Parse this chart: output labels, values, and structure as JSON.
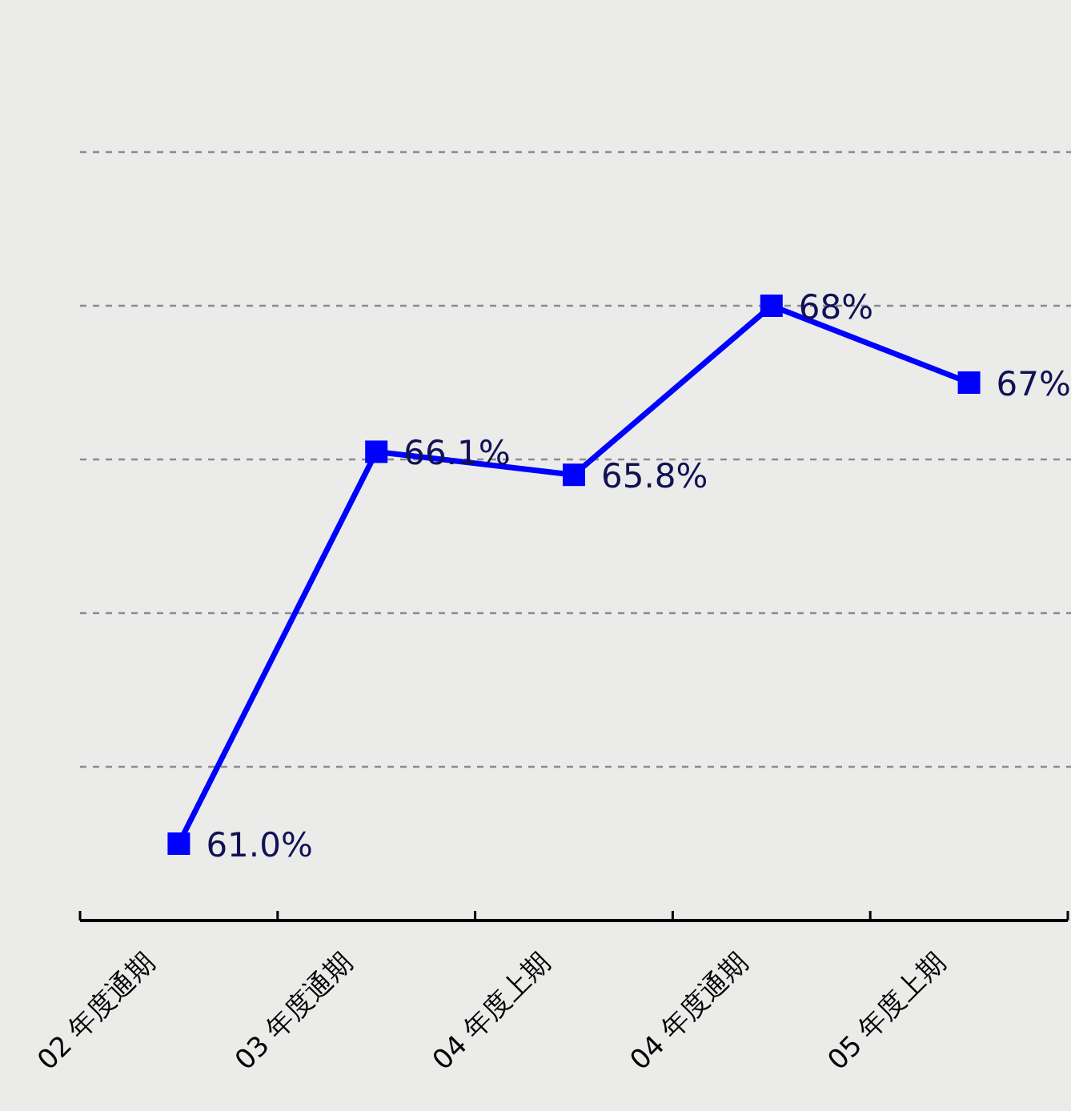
{
  "chart_data": {
    "type": "line",
    "categories": [
      "02 年度通期",
      "03 年度通期",
      "04 年度上期",
      "04 年度通期",
      "05 年度上期"
    ],
    "values": [
      61.0,
      66.1,
      65.8,
      68,
      67
    ],
    "value_labels": [
      "61.0%",
      "66.1%",
      "65.8%",
      "68%",
      "67%"
    ],
    "color": "#0000ff",
    "marker": "square",
    "ylim": [
      60,
      70
    ],
    "yticks": [
      {
        "value": 60,
        "label": null
      },
      {
        "value": 62,
        "label": null
      },
      {
        "value": 64,
        "label": null
      },
      {
        "value": 66,
        "label": null
      },
      {
        "value": 68,
        "label": null
      },
      {
        "value": 70,
        "label": null
      }
    ],
    "grid": "y",
    "tick_labels": "x"
  }
}
